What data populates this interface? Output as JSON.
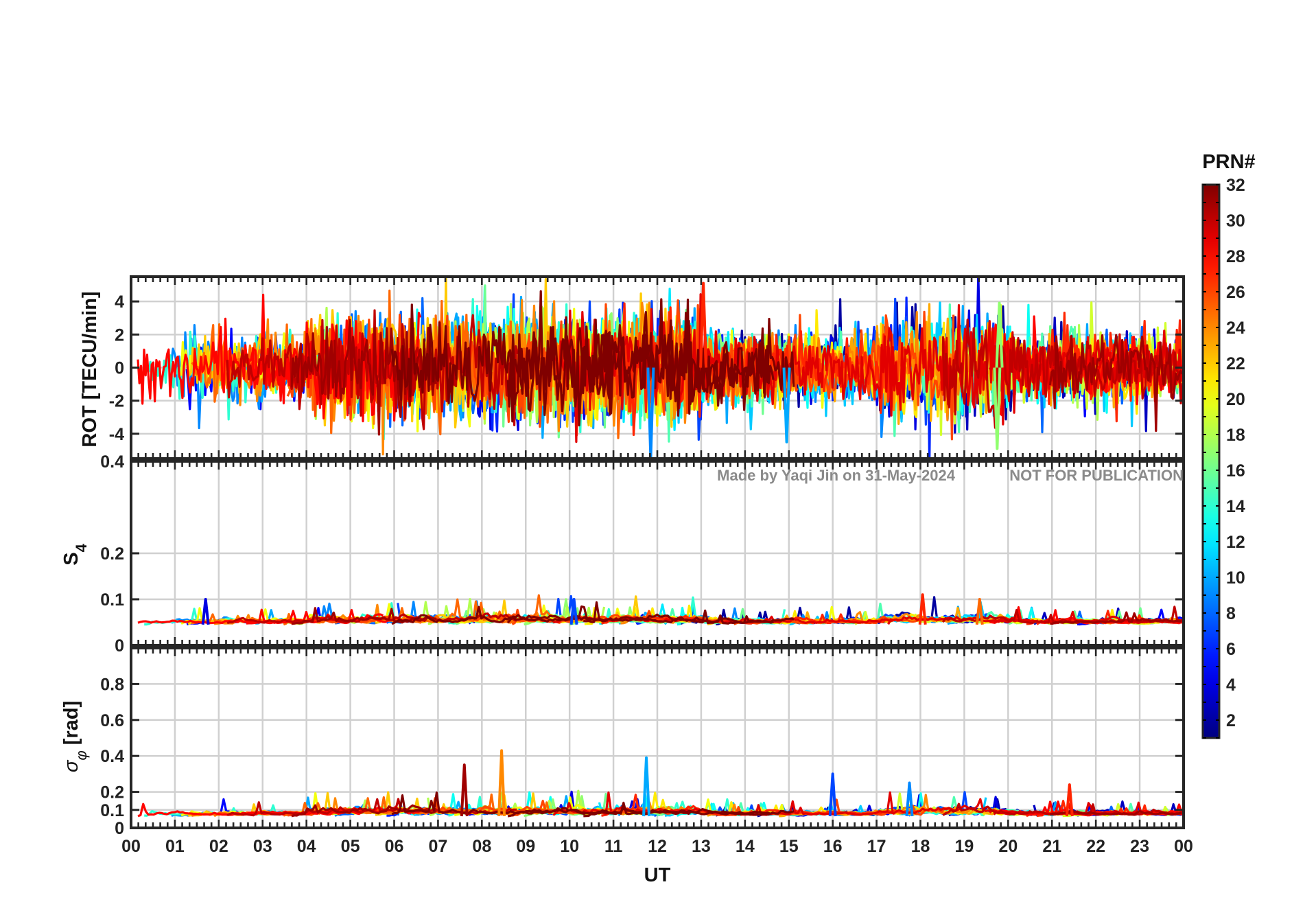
{
  "chart_data": [
    {
      "id": "rot",
      "type": "line",
      "ylabel": "ROT [TECU/min]",
      "ylim": [
        -5.5,
        5.5
      ],
      "yticks": [
        -4,
        -2,
        0,
        2,
        4
      ],
      "tick_labels": [
        "-4",
        "-2",
        "0",
        "2",
        "4"
      ],
      "grid": true,
      "typical_range": [
        -1,
        1
      ],
      "notable_peaks": [
        {
          "x_hour": 11.85,
          "value": -5.5,
          "prn": 9
        },
        {
          "x_hour": 13.05,
          "value": 5.1,
          "prn": 27
        },
        {
          "x_hour": 19.8,
          "value": 3.9,
          "prn": 17
        },
        {
          "x_hour": 19.75,
          "value": -4.9,
          "prn": 17
        },
        {
          "x_hour": 14.95,
          "value": -4.5,
          "prn": 10
        }
      ]
    },
    {
      "id": "s4",
      "type": "line",
      "ylabel": "S",
      "ylabel_sub": "4",
      "ylim": [
        0,
        0.4
      ],
      "yticks": [
        0,
        0.1,
        0.2,
        0.4
      ],
      "tick_labels": [
        "0",
        "0.1",
        "0.2",
        "0.4"
      ],
      "grid": true,
      "typical_range": [
        0.03,
        0.06
      ],
      "notable_peaks": [
        {
          "x_hour": 1.7,
          "value": 0.1,
          "prn": 4
        },
        {
          "x_hour": 10.1,
          "value": 0.1,
          "prn": 7
        },
        {
          "x_hour": 18.05,
          "value": 0.11,
          "prn": 27
        },
        {
          "x_hour": 19.35,
          "value": 0.1,
          "prn": 25
        }
      ]
    },
    {
      "id": "sigma_phi",
      "type": "line",
      "ylabel": "σ",
      "ylabel_sub": "φ",
      "ylabel_unit": " [rad]",
      "ylim": [
        0,
        1.0
      ],
      "yticks": [
        0,
        0.1,
        0.2,
        0.4,
        0.6,
        0.8
      ],
      "tick_labels": [
        "0",
        "0.1",
        "0.2",
        "0.4",
        "0.6",
        "0.8"
      ],
      "grid": true,
      "typical_range": [
        0.03,
        0.1
      ],
      "notable_peaks": [
        {
          "x_hour": 8.45,
          "value": 0.43,
          "prn": 24
        },
        {
          "x_hour": 7.6,
          "value": 0.35,
          "prn": 31
        },
        {
          "x_hour": 11.75,
          "value": 0.39,
          "prn": 10
        },
        {
          "x_hour": 16.0,
          "value": 0.3,
          "prn": 7
        },
        {
          "x_hour": 17.75,
          "value": 0.25,
          "prn": 9
        },
        {
          "x_hour": 21.4,
          "value": 0.24,
          "prn": 27
        }
      ]
    }
  ],
  "x_axis": {
    "label": "UT",
    "range_hours": [
      0,
      24
    ],
    "tick_labels": [
      "00",
      "01",
      "02",
      "03",
      "04",
      "05",
      "06",
      "07",
      "08",
      "09",
      "10",
      "11",
      "12",
      "13",
      "14",
      "15",
      "16",
      "17",
      "18",
      "19",
      "20",
      "21",
      "22",
      "23",
      "00"
    ]
  },
  "colorbar": {
    "title": "PRN#",
    "range": [
      1,
      32
    ],
    "tick_labels": [
      "2",
      "4",
      "6",
      "8",
      "10",
      "12",
      "14",
      "16",
      "18",
      "20",
      "22",
      "24",
      "26",
      "28",
      "30",
      "32"
    ],
    "colormap": "jet"
  },
  "watermark": {
    "credit": "Made by Yaqi Jin on 31-May-2024",
    "notice": "NOT FOR PUBLICATION"
  },
  "colors": {
    "frame": "#262626",
    "grid": "#d0d0d0",
    "watermark": "#8a8a8a"
  }
}
